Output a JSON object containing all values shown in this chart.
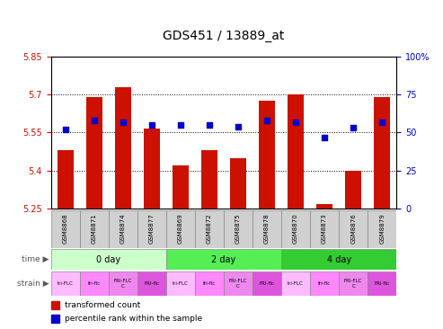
{
  "title": "GDS451 / 13889_at",
  "samples": [
    "GSM8868",
    "GSM8871",
    "GSM8874",
    "GSM8877",
    "GSM8869",
    "GSM8872",
    "GSM8875",
    "GSM8878",
    "GSM8870",
    "GSM8873",
    "GSM8876",
    "GSM8879"
  ],
  "transformed_counts": [
    5.48,
    5.69,
    5.73,
    5.565,
    5.42,
    5.48,
    5.45,
    5.675,
    5.7,
    5.265,
    5.4,
    5.69
  ],
  "percentile_ranks": [
    52,
    58,
    57,
    55,
    55,
    55,
    54,
    58,
    57,
    47,
    53,
    57
  ],
  "ylim_left": [
    5.25,
    5.85
  ],
  "ylim_right": [
    0,
    100
  ],
  "yticks_left": [
    5.25,
    5.4,
    5.55,
    5.7,
    5.85
  ],
  "yticks_right": [
    0,
    25,
    50,
    75,
    100
  ],
  "ytick_labels_left": [
    "5.25",
    "5.4",
    "5.55",
    "5.7",
    "5.85"
  ],
  "ytick_labels_right": [
    "0",
    "25",
    "50",
    "75",
    "100%"
  ],
  "bar_color": "#cc1100",
  "dot_color": "#0000cc",
  "bar_bottom": 5.25,
  "dot_size": 22,
  "time_groups": [
    {
      "label": "0 day",
      "start": 0,
      "end": 3,
      "color": "#ccffcc"
    },
    {
      "label": "2 day",
      "start": 4,
      "end": 7,
      "color": "#55ee55"
    },
    {
      "label": "4 day",
      "start": 8,
      "end": 11,
      "color": "#33cc33"
    }
  ],
  "strain_labels": [
    "tri-FLC",
    "fri-flc",
    "FRI-FLC\nC",
    "FRI-flc",
    "tri-FLC",
    "fri-flc",
    "FRI-FLC\nC",
    "FRI-flc",
    "tri-FLC",
    "fri-flc",
    "FRI-FLC\nC",
    "FRI-flc"
  ],
  "strain_colors": [
    "#ffbbff",
    "#ff88ff",
    "#ee88ee",
    "#dd55dd",
    "#ffbbff",
    "#ff88ff",
    "#ee88ee",
    "#dd55dd",
    "#ffbbff",
    "#ff88ff",
    "#ee88ee",
    "#dd55dd"
  ],
  "legend_items": [
    {
      "color": "#cc1100",
      "label": "transformed count"
    },
    {
      "color": "#0000cc",
      "label": "percentile rank within the sample"
    }
  ],
  "grid_color": "black",
  "bar_width": 0.55,
  "title_fontsize": 10,
  "tick_fontsize": 7,
  "bg_color": "#ffffff",
  "sample_bg": "#d0d0d0",
  "border_color": "#999999"
}
